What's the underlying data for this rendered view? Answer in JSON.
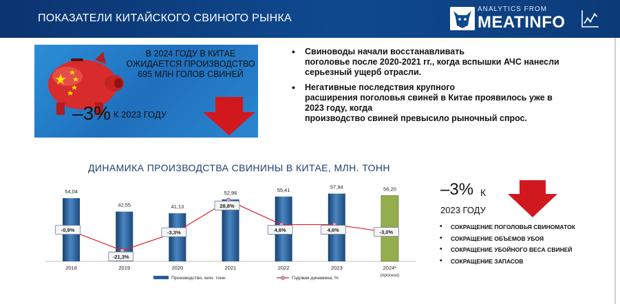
{
  "header": {
    "title": "ПОКАЗАТЕЛИ КИТАЙСКОГО СВИНОГО РЫНКА",
    "logo_small": "ANALYTICS FROM",
    "logo_big": "MEATINFO"
  },
  "banner": {
    "line1": "В 2024 ГОДУ В КИТАЕ",
    "line2": "ОЖИДАЕТСЯ ПРОИЗВОДСТВО",
    "line3": "695 МЛН ГОЛОВ СВИНЕЙ",
    "pct": "–3%",
    "pct_label": "К 2023 ГОДУ"
  },
  "bullets": [
    {
      "line1": "Свиноводы начали восстанавливать",
      "line2": "поголовье после 2020-2021 гг., когда вспышки АЧС нанесли",
      "line3": "серьезный ущерб отрасли."
    },
    {
      "line1": "Негативные последствия крупного",
      "line2": "расширения поголовья свиней в Китае проявилось уже в",
      "line3": "2023 году, когда",
      "line4": "производство свиней превысило рыночный спрос."
    }
  ],
  "chart_title": "ДИНАМИКА ПРОИЗВОДСТВА СВИНИНЫ В КИТАЕ, МЛН. ТОНН",
  "chart_data": {
    "type": "bar",
    "title": "ДИНАМИКА ПРОИЗВОДСТВА СВИНИНЫ В КИТАЕ, МЛН. ТОНН",
    "categories": [
      "2018",
      "2019",
      "2020",
      "2021",
      "2022",
      "2023",
      "2024*"
    ],
    "category_note": "(прогноз)",
    "series": [
      {
        "name": "Производство, млн. тонн",
        "type": "bar",
        "values": [
          54.04,
          42.55,
          41.13,
          52.96,
          55.41,
          57.94,
          56.2
        ],
        "labels": [
          "54,04",
          "42,55",
          "41,13",
          "52,96",
          "55,41",
          "57,94",
          "56,20"
        ],
        "color": "#2a5f98",
        "highlight_color": "#93ad4f"
      },
      {
        "name": "Годовая динамика, %",
        "type": "line",
        "values": [
          -0.9,
          -21.3,
          -3.3,
          28.8,
          4.6,
          4.6,
          -3.0
        ],
        "labels": [
          "-0,9%",
          "-21,3%",
          "-3,3%",
          "28,8%",
          "4,6%",
          "4,6%",
          "-3,0%"
        ],
        "color": "#d9232a"
      }
    ],
    "ylim": [
      0,
      60
    ],
    "y2lim": [
      -30,
      40
    ],
    "legend": "bottom"
  },
  "right_panel": {
    "pct": "–3%",
    "k": "К",
    "year": "2023 ГОДУ",
    "items": [
      "СОКРАЩЕНИЕ ПОГОЛОВЬЯ СВИНОМАТОК",
      "СОКРАЩЕНИЕ ОБЪЕМОВ УБОЯ",
      "СОКРАЩЕНИЕ УБОЙНОГО ВЕСА СВИНЕЙ",
      "СОКРАЩЕНИЕ ЗАПАСОВ"
    ]
  },
  "colors": {
    "header": "#0f4a8f",
    "banner": "#2479c7",
    "arrow": "#d1181f",
    "bar": "#2a5f98",
    "bar_highlight": "#93ad4f",
    "line": "#d9232a"
  }
}
